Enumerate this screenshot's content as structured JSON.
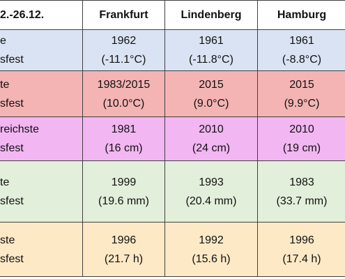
{
  "table": {
    "header": [
      "2.-26.12.",
      "Frankfurt",
      "Lindenberg",
      "Hamburg"
    ],
    "rows": [
      [
        [
          "e",
          "sfest"
        ],
        [
          "1962",
          "(-11.1°C)"
        ],
        [
          "1961",
          "(-11.8°C)"
        ],
        [
          "1961",
          "(-8.8°C)"
        ]
      ],
      [
        [
          "te",
          "sfest"
        ],
        [
          "1983/2015",
          "(10.0°C)"
        ],
        [
          "2015",
          "(9.0°C)"
        ],
        [
          "2015",
          "(9.9°C)"
        ]
      ],
      [
        [
          "reichste",
          "sfest"
        ],
        [
          "1981",
          "(16 cm)"
        ],
        [
          "2010",
          "(24 cm)"
        ],
        [
          "2010",
          "(19 cm)"
        ]
      ],
      [
        [
          "te",
          "sfest"
        ],
        [
          "1999",
          "(19.6 mm)"
        ],
        [
          "1993",
          "(20.4 mm)"
        ],
        [
          "1983",
          "(33.7 mm)"
        ]
      ],
      [
        [
          "ste",
          "sfest"
        ],
        [
          "1996",
          "(21.7 h)"
        ],
        [
          "1992",
          "(15.6 h)"
        ],
        [
          "1996",
          "(17.4 h)"
        ]
      ]
    ]
  }
}
